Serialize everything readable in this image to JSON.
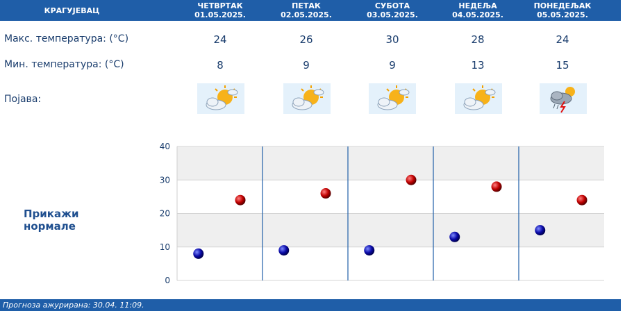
{
  "header": {
    "city": "КРАГУЈЕВАЦ",
    "days": [
      {
        "name": "ЧЕТВРТАК",
        "date": "01.05.2025."
      },
      {
        "name": "ПЕТАК",
        "date": "02.05.2025."
      },
      {
        "name": "СУБОТА",
        "date": "03.05.2025."
      },
      {
        "name": "НЕДЕЉА",
        "date": "04.05.2025."
      },
      {
        "name": "ПОНЕДЕЉАК",
        "date": "05.05.2025."
      }
    ]
  },
  "rows": {
    "max_label": "Макс. температура: (°C)",
    "min_label": "Мин. температура: (°C)",
    "phenomenon_label": "Појава:",
    "max": [
      24,
      26,
      30,
      28,
      24
    ],
    "min": [
      8,
      9,
      9,
      13,
      15
    ],
    "icons": [
      "partly-sunny-icon",
      "partly-sunny-icon",
      "partly-sunny-icon",
      "partly-sunny-icon",
      "thunderstorm-icon"
    ]
  },
  "normals_link": "Прикажи нормале",
  "chart_data": {
    "type": "scatter",
    "categories": [
      "01.05.2025.",
      "02.05.2025.",
      "03.05.2025.",
      "04.05.2025.",
      "05.05.2025."
    ],
    "series": [
      {
        "values": [
          24,
          26,
          30,
          28,
          24
        ],
        "color": "#c00000"
      },
      {
        "values": [
          8,
          9,
          9,
          13,
          15
        ],
        "color": "#0a0aa8"
      }
    ],
    "ylim": [
      0,
      40
    ],
    "yticks": [
      0,
      10,
      20,
      30,
      40
    ],
    "grid": true
  },
  "footer": {
    "text": "Прогноза ажурирана:  30.04. 11:09."
  },
  "colors": {
    "header_bg": "#1f5ea8",
    "text": "#1a3d6d",
    "max_dot": "#c00000",
    "min_dot": "#0a0aa8"
  }
}
